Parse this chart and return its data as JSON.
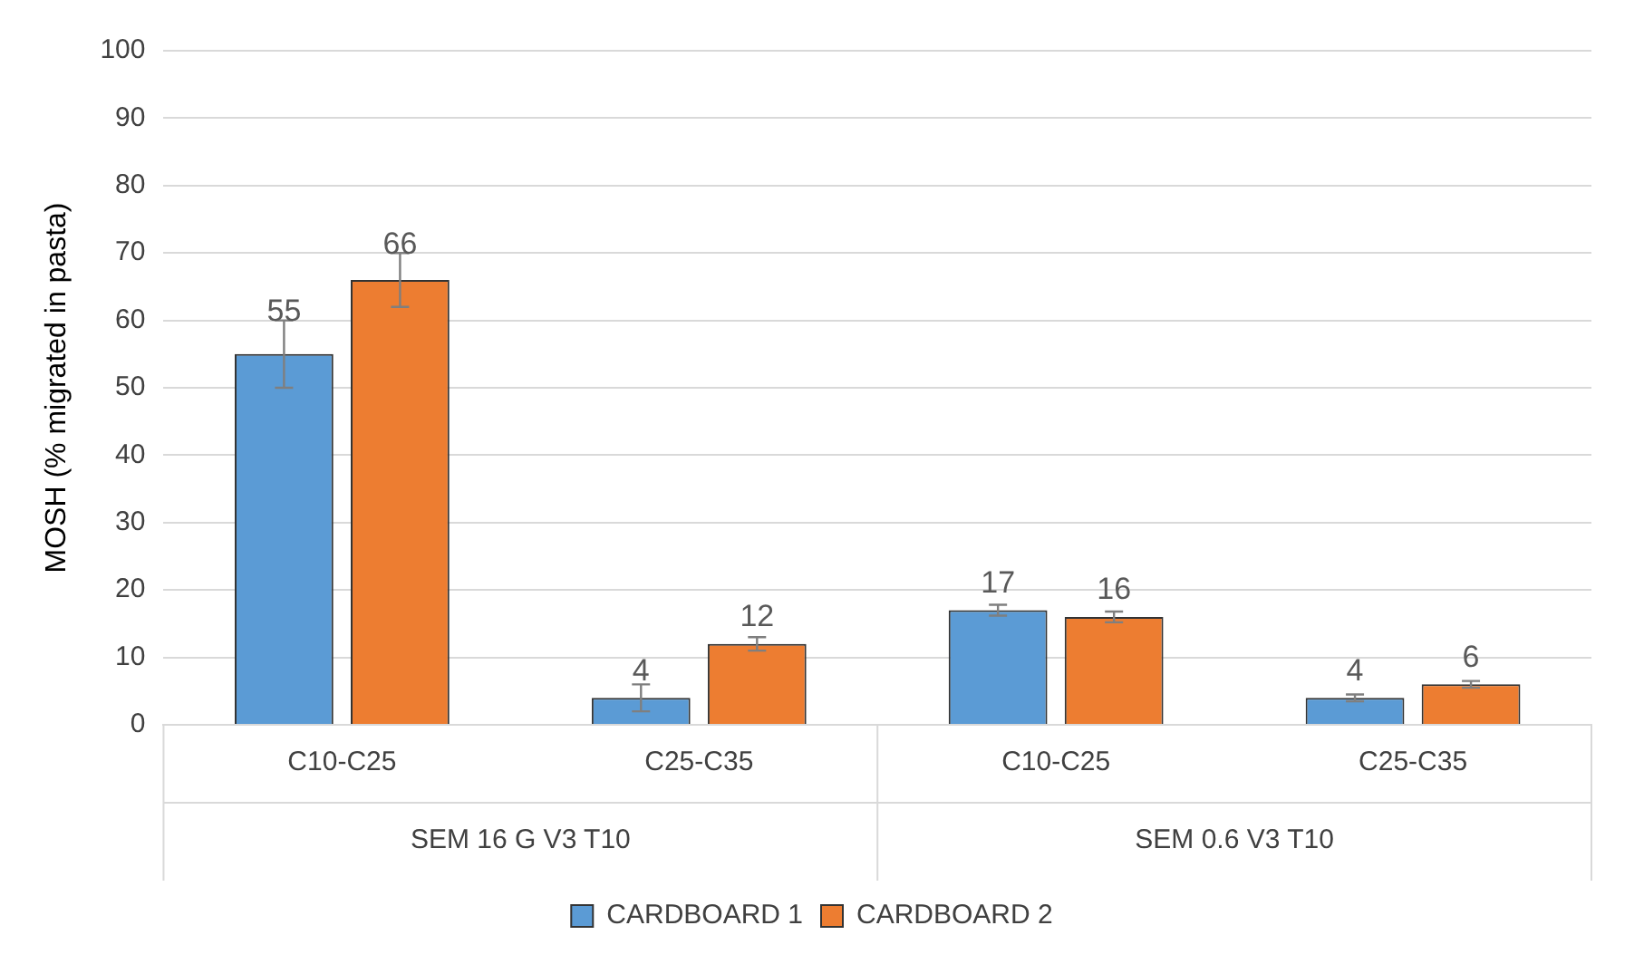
{
  "chart_data": {
    "type": "bar",
    "ylabel": "MOSH (% migrated in pasta)",
    "categories": [
      "C10-C25",
      "C25-C35",
      "C10-C25",
      "C25-C35"
    ],
    "series": [
      {
        "name": "CARDBOARD 1",
        "color": "#5b9bd5",
        "values": [
          55,
          4,
          17,
          4
        ],
        "errors": [
          5,
          2,
          0.8,
          0.5
        ]
      },
      {
        "name": "CARDBOARD 2",
        "color": "#ed7d31",
        "values": [
          66,
          12,
          16,
          6
        ],
        "errors": [
          4,
          1,
          0.8,
          0.5
        ]
      }
    ],
    "annotations": [
      "SEM 16 G V3 T10",
      "SEM 0.6 V3 T10"
    ],
    "ylim": [
      0,
      100
    ],
    "yticks": [
      0,
      10,
      20,
      30,
      40,
      50,
      60,
      70,
      80,
      90,
      100
    ],
    "grid": "y",
    "legend": "bottom",
    "data_labels": true
  }
}
